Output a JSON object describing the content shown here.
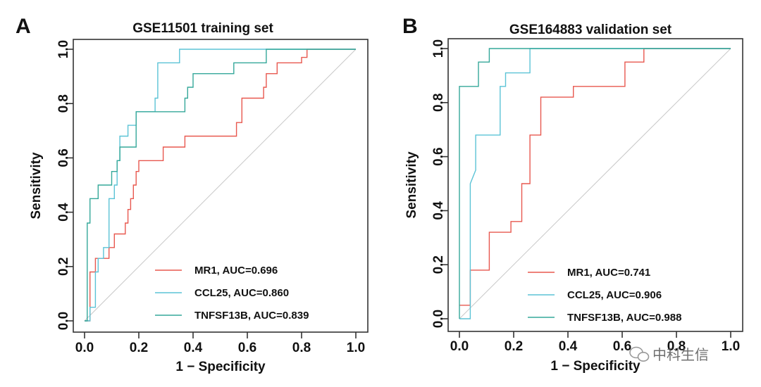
{
  "colors": {
    "mr1": "#e8584f",
    "ccl25": "#5bc3d6",
    "tnfsf13b": "#35a89a",
    "diagonal": "#c8c8c8",
    "axis": "#333333"
  },
  "watermark": {
    "text": "中科生信",
    "icon": "wechat-icon"
  },
  "chart_data": [
    {
      "type": "line",
      "panel_letter": "A",
      "title": "GSE11501 training set",
      "xlabel": "1 − Specificity",
      "ylabel": "Sensitivity",
      "xlim": [
        0,
        1
      ],
      "ylim": [
        0,
        1
      ],
      "xticks": [
        "0.0",
        "0.2",
        "0.4",
        "0.6",
        "0.8",
        "1.0"
      ],
      "yticks": [
        "0.0",
        "0.2",
        "0.4",
        "0.6",
        "0.8",
        "1.0"
      ],
      "legend_position": "bottom-right",
      "series": [
        {
          "key": "mr1",
          "name": "MR1, AUC=0.696",
          "x": [
            0,
            0.02,
            0.02,
            0.02,
            0.02,
            0.04,
            0.04,
            0.09,
            0.09,
            0.11,
            0.11,
            0.15,
            0.15,
            0.16,
            0.16,
            0.17,
            0.17,
            0.18,
            0.18,
            0.19,
            0.19,
            0.2,
            0.2,
            0.29,
            0.29,
            0.37,
            0.37,
            0.56,
            0.56,
            0.58,
            0.58,
            0.66,
            0.66,
            0.67,
            0.67,
            0.71,
            0.71,
            0.8,
            0.8,
            0.82,
            0.82,
            1.0
          ],
          "y": [
            0,
            0,
            0.09,
            0.14,
            0.18,
            0.18,
            0.23,
            0.23,
            0.27,
            0.27,
            0.32,
            0.32,
            0.36,
            0.36,
            0.41,
            0.41,
            0.45,
            0.45,
            0.5,
            0.5,
            0.55,
            0.55,
            0.59,
            0.59,
            0.64,
            0.64,
            0.68,
            0.68,
            0.73,
            0.73,
            0.82,
            0.82,
            0.86,
            0.86,
            0.91,
            0.91,
            0.95,
            0.95,
            0.97,
            0.97,
            1.0,
            1.0
          ]
        },
        {
          "key": "ccl25",
          "name": "CCL25, AUC=0.860",
          "x": [
            0,
            0.02,
            0.02,
            0.04,
            0.04,
            0.05,
            0.05,
            0.07,
            0.07,
            0.09,
            0.09,
            0.11,
            0.11,
            0.12,
            0.12,
            0.13,
            0.13,
            0.16,
            0.16,
            0.19,
            0.19,
            0.2,
            0.2,
            0.26,
            0.26,
            0.27,
            0.27,
            0.35,
            0.35,
            0.98,
            1.0
          ],
          "y": [
            0,
            0,
            0.05,
            0.05,
            0.18,
            0.18,
            0.23,
            0.23,
            0.27,
            0.27,
            0.45,
            0.45,
            0.5,
            0.5,
            0.59,
            0.59,
            0.68,
            0.68,
            0.72,
            0.72,
            0.77,
            0.77,
            0.77,
            0.77,
            0.82,
            0.82,
            0.95,
            0.95,
            1.0,
            1.0,
            1.0
          ]
        },
        {
          "key": "tnfsf13b",
          "name": "TNFSF13B, AUC=0.839",
          "x": [
            0,
            0.01,
            0.01,
            0.02,
            0.02,
            0.05,
            0.05,
            0.1,
            0.1,
            0.12,
            0.12,
            0.13,
            0.13,
            0.19,
            0.19,
            0.37,
            0.37,
            0.38,
            0.38,
            0.4,
            0.4,
            0.55,
            0.55,
            0.67,
            0.67,
            1.0
          ],
          "y": [
            0,
            0,
            0.36,
            0.36,
            0.45,
            0.45,
            0.5,
            0.5,
            0.55,
            0.55,
            0.59,
            0.59,
            0.64,
            0.64,
            0.77,
            0.77,
            0.82,
            0.82,
            0.86,
            0.86,
            0.91,
            0.91,
            0.95,
            0.95,
            1.0,
            1.0
          ]
        }
      ]
    },
    {
      "type": "line",
      "panel_letter": "B",
      "title": "GSE164883 validation set",
      "xlabel": "1 − Specificity",
      "ylabel": "Sensitivity",
      "xlim": [
        0,
        1
      ],
      "ylim": [
        0,
        1
      ],
      "xticks": [
        "0.0",
        "0.2",
        "0.4",
        "0.6",
        "0.8",
        "1.0"
      ],
      "yticks": [
        "0.0",
        "0.2",
        "0.4",
        "0.6",
        "0.8",
        "1.0"
      ],
      "legend_position": "bottom-right",
      "series": [
        {
          "key": "mr1",
          "name": "MR1, AUC=0.741",
          "x": [
            0,
            0.04,
            0.04,
            0.11,
            0.11,
            0.19,
            0.19,
            0.23,
            0.23,
            0.26,
            0.26,
            0.3,
            0.3,
            0.42,
            0.42,
            0.61,
            0.61,
            0.68,
            0.68,
            1.0
          ],
          "y": [
            0.05,
            0.05,
            0.18,
            0.18,
            0.32,
            0.32,
            0.36,
            0.36,
            0.5,
            0.5,
            0.68,
            0.68,
            0.82,
            0.82,
            0.86,
            0.86,
            0.95,
            0.95,
            1.0,
            1.0
          ]
        },
        {
          "key": "ccl25",
          "name": "CCL25, AUC=0.906",
          "x": [
            0,
            0.04,
            0.04,
            0.06,
            0.06,
            0.07,
            0.07,
            0.15,
            0.15,
            0.17,
            0.17,
            0.26,
            0.26,
            1.0
          ],
          "y": [
            0,
            0,
            0.5,
            0.55,
            0.68,
            0.68,
            0.68,
            0.68,
            0.86,
            0.86,
            0.91,
            0.91,
            1.0,
            1.0
          ]
        },
        {
          "key": "tnfsf13b",
          "name": "TNFSF13B, AUC=0.988",
          "x": [
            0,
            0.0,
            0.07,
            0.07,
            0.11,
            0.11,
            1.0
          ],
          "y": [
            0,
            0.86,
            0.86,
            0.95,
            0.95,
            1.0,
            1.0
          ]
        }
      ]
    }
  ]
}
